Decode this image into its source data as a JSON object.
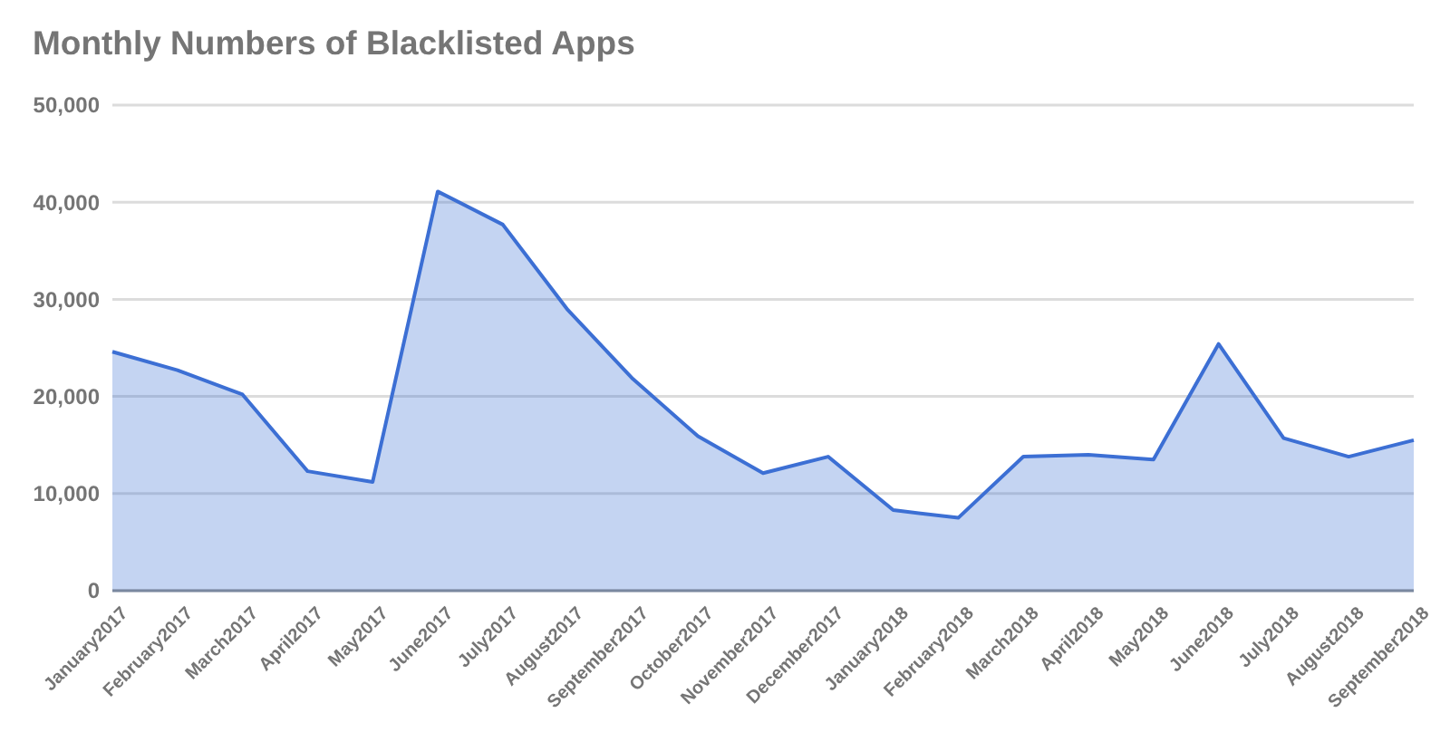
{
  "chart_data": {
    "type": "area",
    "title": "Monthly Numbers of Blacklisted Apps",
    "categories": [
      "January2017",
      "February2017",
      "March2017",
      "April2017",
      "May2017",
      "June2017",
      "July2017",
      "August2017",
      "September2017",
      "October2017",
      "November2017",
      "December2017",
      "January2018",
      "February2018",
      "March2018",
      "April2018",
      "May2018",
      "June2018",
      "July2018",
      "August2018",
      "September2018"
    ],
    "series": [
      {
        "color": "#3c6fd4",
        "values": [
          24600,
          22700,
          20200,
          12300,
          11200,
          41100,
          37700,
          28900,
          21800,
          15900,
          12100,
          13800,
          8300,
          7500,
          13800,
          14000,
          13500,
          25400,
          15700,
          13800,
          15500
        ]
      }
    ],
    "ylim": [
      0,
      50000
    ],
    "yticks": [
      0,
      {
        "value": 10000,
        "label": "10,000"
      },
      {
        "value": 20000,
        "label": "20,000"
      },
      {
        "value": 30000,
        "label": "30,000"
      },
      {
        "value": 40000,
        "label": "40,000"
      },
      {
        "value": 50000,
        "label": "50,000"
      }
    ],
    "grid": "y"
  }
}
